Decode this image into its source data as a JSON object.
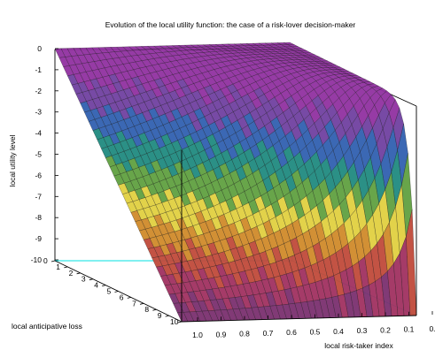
{
  "chart_data": {
    "type": "surface",
    "title": "Evolution of the local utility function: the case of a risk-lover decision-maker",
    "xlabel": "local risk-taker index",
    "ylabel": "local anticipative loss",
    "zlabel": "local utility level",
    "x_ticks": [
      "1.0",
      "0.9",
      "0.8",
      "0.7",
      "0.6",
      "0.5",
      "0.4",
      "0.3",
      "0.2",
      "0.1",
      "0."
    ],
    "y_ticks": [
      "0",
      "1",
      "2",
      "3",
      "4",
      "5",
      "6",
      "7",
      "8",
      "9",
      "10"
    ],
    "z_ticks": [
      "0",
      "-1",
      "-2",
      "-3",
      "-4",
      "-5",
      "-6",
      "-7",
      "-8",
      "-9",
      "-10"
    ],
    "xlim": [
      0.05,
      1.0
    ],
    "ylim": [
      0,
      10
    ],
    "zlim": [
      -10,
      0
    ],
    "function": "u(L, r) = -L^(1/r) / 10^(1/r - 1)",
    "colormap": [
      "#7a2f6f",
      "#a03060",
      "#c04a3a",
      "#d08a2a",
      "#e0d040",
      "#60a040",
      "#208a80",
      "#3060b0",
      "#7040a0",
      "#9030a0"
    ]
  }
}
